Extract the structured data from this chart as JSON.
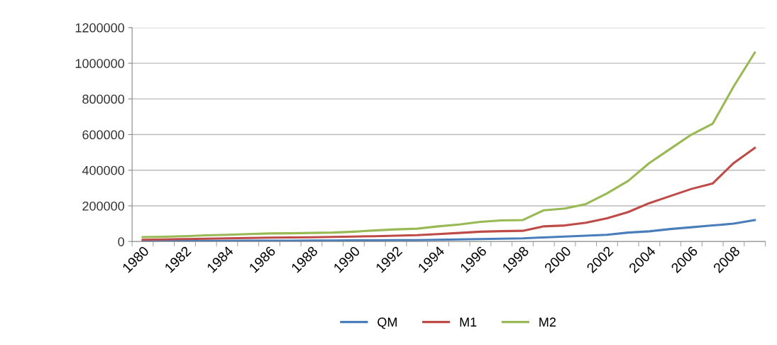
{
  "chart_data": {
    "type": "line",
    "categories": [
      "1980",
      null,
      "1982",
      null,
      "1984",
      null,
      "1986",
      null,
      "1988",
      null,
      "1990",
      null,
      "1992",
      null,
      "1994",
      null,
      "1996",
      null,
      "1998",
      null,
      "2000",
      null,
      "2002",
      null,
      "2004",
      null,
      "2006",
      null,
      "2008",
      null
    ],
    "series": [
      {
        "name": "QM",
        "color": "#4a7ebb",
        "values": [
          2000,
          3000,
          3000,
          4000,
          4000,
          5000,
          5000,
          5000,
          6000,
          6000,
          7000,
          7000,
          8000,
          8000,
          10000,
          12000,
          14000,
          16000,
          18000,
          23000,
          28000,
          33000,
          38000,
          50000,
          57000,
          70000,
          80000,
          90000,
          100000,
          120000
        ]
      },
      {
        "name": "M1",
        "color": "#be4b48",
        "values": [
          10000,
          12000,
          14000,
          16000,
          18000,
          20000,
          22000,
          23000,
          24000,
          26000,
          28000,
          30000,
          33000,
          36000,
          42000,
          48000,
          55000,
          58000,
          60000,
          85000,
          90000,
          105000,
          130000,
          165000,
          215000,
          255000,
          295000,
          325000,
          440000,
          525000
        ]
      },
      {
        "name": "M2",
        "color": "#98b954",
        "values": [
          25000,
          27000,
          30000,
          35000,
          38000,
          42000,
          45000,
          46000,
          48000,
          50000,
          55000,
          62000,
          68000,
          72000,
          85000,
          95000,
          110000,
          118000,
          120000,
          175000,
          185000,
          210000,
          270000,
          340000,
          440000,
          520000,
          600000,
          660000,
          870000,
          1060000
        ]
      }
    ],
    "ylim": [
      0,
      1200000
    ],
    "yticks": [
      0,
      200000,
      400000,
      600000,
      800000,
      1000000,
      1200000
    ],
    "grid": "y",
    "legend": "bottom",
    "marker": "none",
    "line_style": "solid"
  }
}
